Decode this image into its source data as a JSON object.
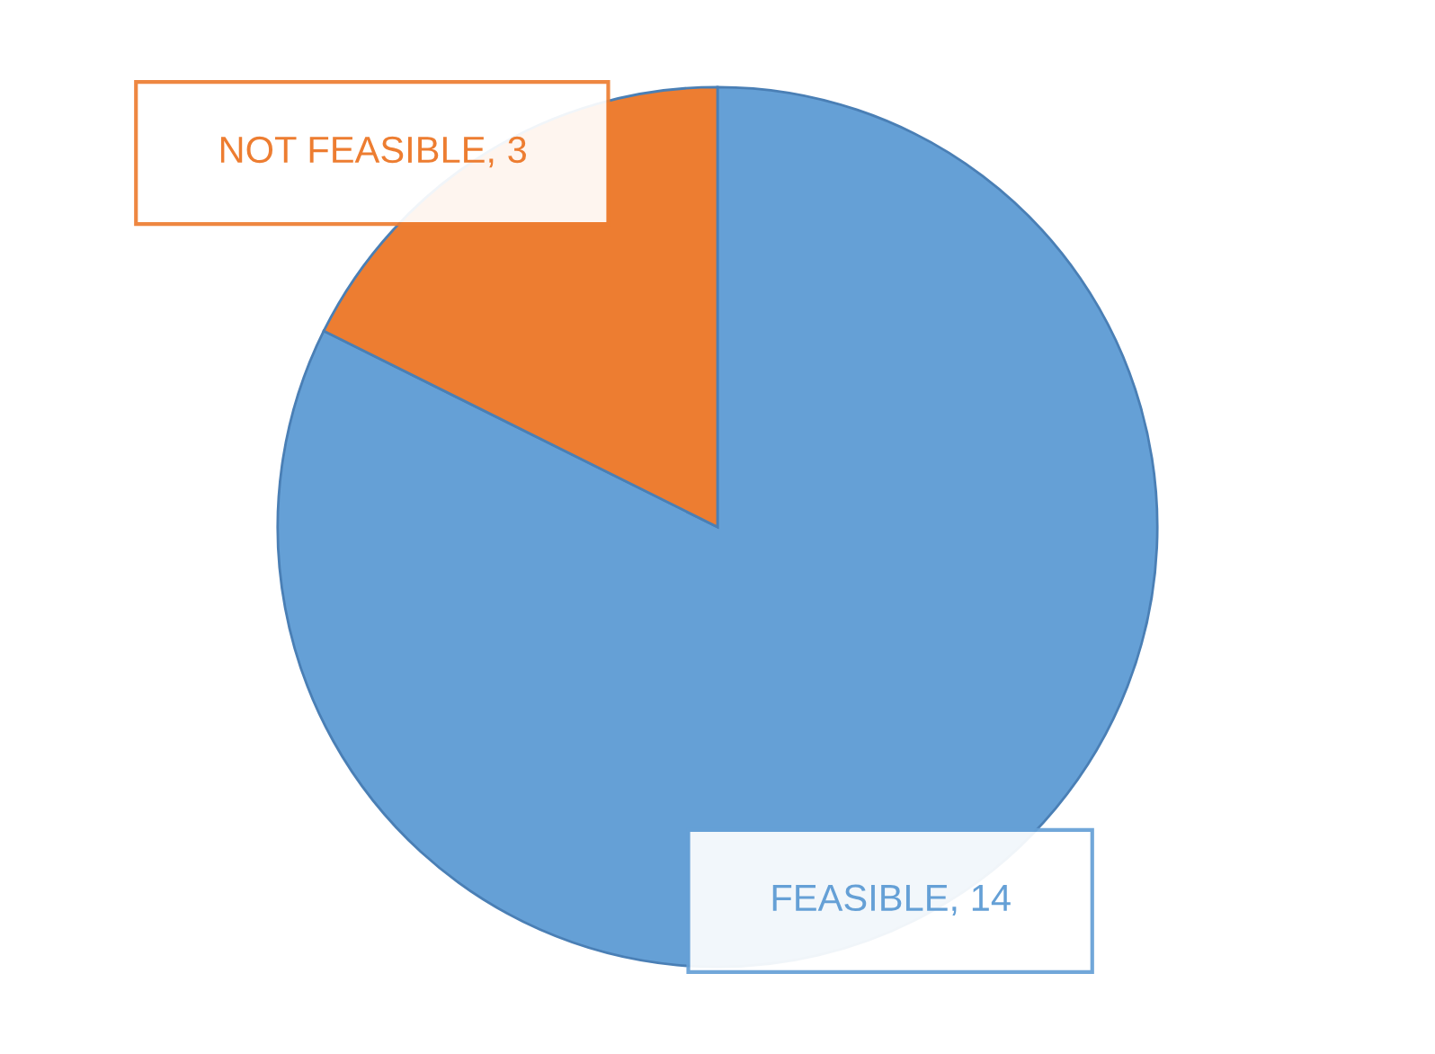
{
  "chart_data": {
    "type": "pie",
    "categories": [
      "FEASIBLE",
      "NOT FEASIBLE"
    ],
    "values": [
      14,
      3
    ],
    "value_labels": [
      ", 14",
      ", 3"
    ],
    "colors": [
      "#65a0d6",
      "#ed7d31"
    ],
    "legend": false
  }
}
